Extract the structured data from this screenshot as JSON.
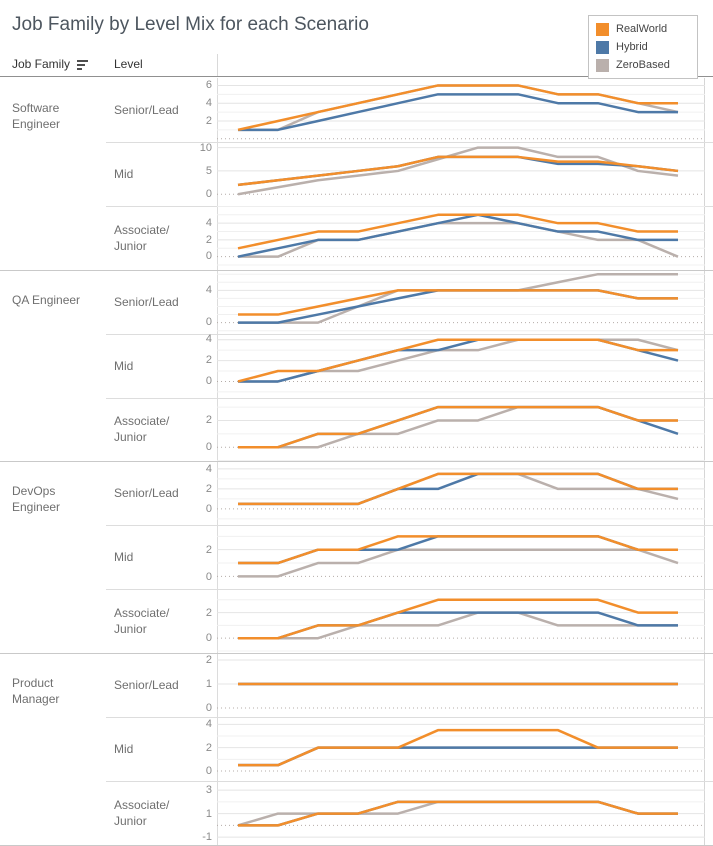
{
  "title": "Job Family by Level Mix for each Scenario",
  "column_headers": {
    "job_family": "Job Family",
    "level": "Level"
  },
  "legend": {
    "position": "top-right",
    "items": [
      {
        "key": "real_world",
        "label": "RealWorld",
        "color": "#F28E2B"
      },
      {
        "key": "hybrid",
        "label": "Hybrid",
        "color": "#4E79A7"
      },
      {
        "key": "zero_based",
        "label": "ZeroBased",
        "color": "#BAB0AC"
      }
    ]
  },
  "chart_data": {
    "type": "line",
    "title": "Job Family by Level Mix for each Scenario",
    "x_axis": {
      "labels_visible": false,
      "num_points": 12
    },
    "grid": true,
    "zero_line": "dotted",
    "series_draw_order": [
      "zero_based",
      "hybrid",
      "real_world"
    ],
    "panels": [
      {
        "job_family": "Software Engineer",
        "level": "Senior/Lead",
        "y_ticks": [
          2,
          4,
          6
        ],
        "y_domain": [
          -0.36,
          6.84
        ],
        "series": {
          "real_world": [
            1,
            2,
            3,
            4,
            5,
            6,
            6,
            6,
            5,
            5,
            4,
            4
          ],
          "hybrid": [
            1,
            1,
            2,
            3,
            4,
            5,
            5,
            5,
            4,
            4,
            3,
            3
          ],
          "zero_based": [
            1,
            1,
            3,
            4,
            5,
            6,
            6,
            6,
            5,
            5,
            4,
            3
          ]
        }
      },
      {
        "job_family": "Software Engineer",
        "level": "Mid",
        "y_ticks": [
          0,
          5,
          10
        ],
        "y_domain": [
          -2.5,
          11.2
        ],
        "series": {
          "real_world": [
            2,
            3,
            4,
            5,
            6,
            8,
            8,
            8,
            7,
            7,
            6,
            5
          ],
          "hybrid": [
            2,
            3,
            4,
            5,
            6,
            8,
            8,
            8,
            6.5,
            6.5,
            6,
            5
          ],
          "zero_based": [
            0,
            1.5,
            3,
            4,
            5,
            7.5,
            10,
            10,
            8,
            8,
            5,
            4
          ]
        }
      },
      {
        "job_family": "Software Engineer",
        "level": "Associate/ Junior",
        "y_ticks": [
          0,
          2,
          4
        ],
        "y_domain": [
          -1.58,
          6.05
        ],
        "series": {
          "real_world": [
            1,
            2,
            3,
            3,
            4,
            5,
            5,
            5,
            4,
            4,
            3,
            3
          ],
          "hybrid": [
            0,
            1,
            2,
            2,
            3,
            4,
            5,
            4,
            3,
            3,
            2,
            2
          ],
          "zero_based": [
            0,
            0,
            2,
            2,
            3,
            4,
            4,
            4,
            3,
            2,
            2,
            0
          ]
        }
      },
      {
        "job_family": "QA Engineer",
        "level": "Senior/Lead",
        "y_ticks": [
          0,
          4
        ],
        "y_domain": [
          -1.4,
          6.52
        ],
        "series": {
          "real_world": [
            1,
            1,
            2,
            3,
            4,
            4,
            4,
            4,
            4,
            4,
            3,
            3
          ],
          "hybrid": [
            0,
            0,
            1,
            2,
            3,
            4,
            4,
            4,
            4,
            4,
            3,
            3
          ],
          "zero_based": [
            0,
            0,
            0,
            2,
            4,
            4,
            4,
            4,
            5,
            6,
            6,
            6
          ]
        }
      },
      {
        "job_family": "QA Engineer",
        "level": "Mid",
        "y_ticks": [
          0,
          2,
          4
        ],
        "y_domain": [
          -1.58,
          4.55
        ],
        "series": {
          "real_world": [
            0,
            1,
            1,
            2,
            3,
            4,
            4,
            4,
            4,
            4,
            3,
            3
          ],
          "hybrid": [
            0,
            0,
            1,
            2,
            3,
            3,
            4,
            4,
            4,
            4,
            3,
            2
          ],
          "zero_based": [
            0,
            0,
            1,
            1,
            2,
            3,
            3,
            4,
            4,
            4,
            4,
            3
          ]
        }
      },
      {
        "job_family": "QA Engineer",
        "level": "Associate/ Junior",
        "y_ticks": [
          0,
          2
        ],
        "y_domain": [
          -1.1,
          3.68
        ],
        "series": {
          "real_world": [
            0,
            0,
            1,
            1,
            2,
            3,
            3,
            3,
            3,
            3,
            2,
            2
          ],
          "hybrid": [
            0,
            0,
            1,
            1,
            2,
            3,
            3,
            3,
            3,
            3,
            2,
            1
          ],
          "zero_based": [
            0,
            0,
            0,
            1,
            1,
            2,
            2,
            3,
            3,
            3,
            2,
            2
          ]
        }
      },
      {
        "job_family": "DevOps Engineer",
        "level": "Senior/Lead",
        "y_ticks": [
          0,
          2,
          4
        ],
        "y_domain": [
          -1.6,
          4.79
        ],
        "series": {
          "real_world": [
            0.5,
            0.5,
            0.5,
            0.5,
            2,
            3.5,
            3.5,
            3.5,
            3.5,
            3.5,
            2,
            2
          ],
          "hybrid": [
            0.5,
            0.5,
            0.5,
            0.5,
            2,
            2,
            3.5,
            3.5,
            3.5,
            3.5,
            2,
            2
          ],
          "zero_based": [
            0.5,
            0.5,
            0.5,
            0.5,
            2,
            3.5,
            3.5,
            3.5,
            2,
            2,
            2,
            1
          ]
        }
      },
      {
        "job_family": "DevOps Engineer",
        "level": "Mid",
        "y_ticks": [
          0,
          2
        ],
        "y_domain": [
          -0.94,
          3.85
        ],
        "series": {
          "real_world": [
            1,
            1,
            2,
            2,
            3,
            3,
            3,
            3,
            3,
            3,
            2,
            2
          ],
          "hybrid": [
            1,
            1,
            2,
            2,
            2,
            3,
            3,
            3,
            3,
            3,
            2,
            2
          ],
          "zero_based": [
            0,
            0,
            1,
            1,
            2,
            2,
            2,
            2,
            2,
            2,
            2,
            1
          ]
        }
      },
      {
        "job_family": "DevOps Engineer",
        "level": "Associate/ Junior",
        "y_ticks": [
          0,
          2
        ],
        "y_domain": [
          -1.15,
          3.84
        ],
        "series": {
          "real_world": [
            0,
            0,
            1,
            1,
            2,
            3,
            3,
            3,
            3,
            3,
            2,
            2
          ],
          "hybrid": [
            0,
            0,
            1,
            1,
            2,
            2,
            2,
            2,
            2,
            2,
            1,
            1
          ],
          "zero_based": [
            0,
            0,
            0,
            1,
            1,
            1,
            2,
            2,
            1,
            1,
            1,
            1
          ]
        }
      },
      {
        "job_family": "Product Manager",
        "level": "Senior/Lead",
        "y_ticks": [
          0,
          1,
          2
        ],
        "y_domain": [
          -0.37,
          2.29
        ],
        "series": {
          "real_world": [
            1,
            1,
            1,
            1,
            1,
            1,
            1,
            1,
            1,
            1,
            1,
            1
          ],
          "hybrid": [
            1,
            1,
            1,
            1,
            1,
            1,
            1,
            1,
            1,
            1,
            1,
            1
          ],
          "zero_based": [
            1,
            1,
            1,
            1,
            1,
            1,
            1,
            1,
            1,
            1,
            1,
            1
          ]
        }
      },
      {
        "job_family": "Product Manager",
        "level": "Mid",
        "y_ticks": [
          0,
          2,
          4
        ],
        "y_domain": [
          -0.85,
          4.63
        ],
        "series": {
          "real_world": [
            0.5,
            0.5,
            2,
            2,
            2,
            3.5,
            3.5,
            3.5,
            3.5,
            2,
            2,
            2
          ],
          "hybrid": [
            0.5,
            0.5,
            2,
            2,
            2,
            2,
            2,
            2,
            2,
            2,
            2,
            2
          ],
          "zero_based": [
            0.5,
            0.5,
            2,
            2,
            2,
            2,
            2,
            2,
            2,
            2,
            2,
            2
          ]
        }
      },
      {
        "job_family": "Product Manager",
        "level": "Associate/ Junior",
        "y_ticks": [
          -1,
          1,
          3
        ],
        "y_domain": [
          -1.66,
          3.77
        ],
        "series": {
          "real_world": [
            0,
            0,
            1,
            1,
            2,
            2,
            2,
            2,
            2,
            2,
            1,
            1
          ],
          "hybrid": [
            0,
            0,
            1,
            1,
            2,
            2,
            2,
            2,
            2,
            2,
            1,
            1
          ],
          "zero_based": [
            0,
            1,
            1,
            1,
            1,
            2,
            2,
            2,
            2,
            2,
            1,
            1
          ]
        }
      }
    ]
  }
}
